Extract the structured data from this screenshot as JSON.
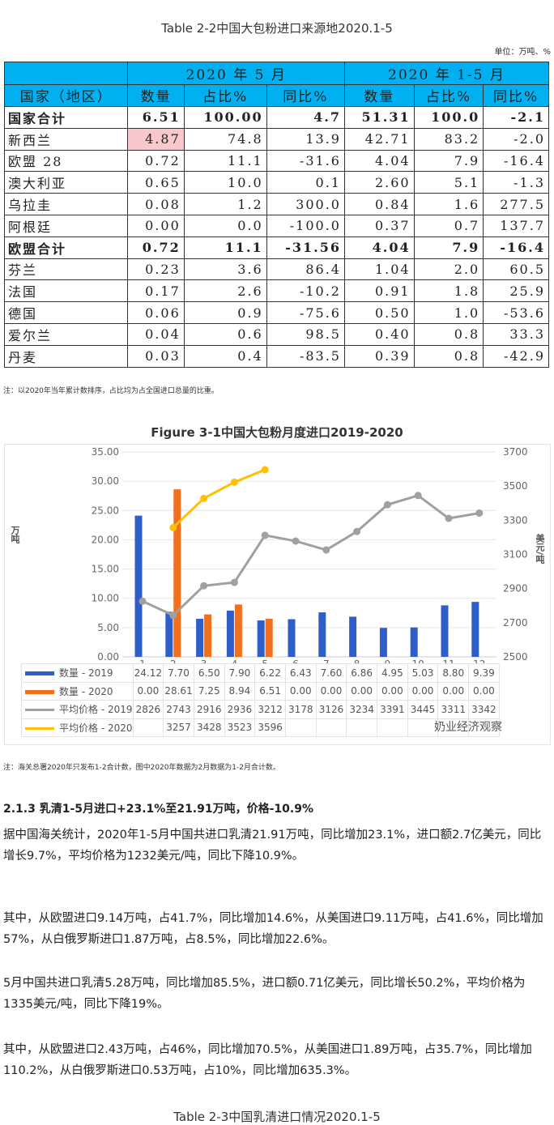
{
  "table": {
    "title": "Table 2-2中国大包粉进口来源地2020.1-5",
    "unit": "单位：万吨、%",
    "group_headers": [
      "2020 年 5 月",
      "2020 年 1-5 月"
    ],
    "headers": [
      "国家（地区）",
      "数量",
      "占比%",
      "同比%",
      "数量",
      "占比%",
      "同比%"
    ],
    "rows": [
      {
        "c": [
          "国家合计",
          "6.51",
          "100.00",
          "4.7",
          "51.31",
          "100.0",
          "-2.1"
        ],
        "bold": true
      },
      {
        "c": [
          "新西兰",
          "4.87",
          "74.8",
          "13.9",
          "42.71",
          "83.2",
          "-2.0"
        ],
        "hl": true
      },
      {
        "c": [
          "欧盟 28",
          "0.72",
          "11.1",
          "-31.6",
          "4.04",
          "7.9",
          "-16.4"
        ]
      },
      {
        "c": [
          "澳大利亚",
          "0.65",
          "10.0",
          "0.1",
          "2.60",
          "5.1",
          "-1.3"
        ]
      },
      {
        "c": [
          "乌拉圭",
          "0.08",
          "1.2",
          "300.0",
          "0.84",
          "1.6",
          "277.5"
        ]
      },
      {
        "c": [
          "阿根廷",
          "0.00",
          "0.0",
          "-100.0",
          "0.37",
          "0.7",
          "137.7"
        ]
      },
      {
        "c": [
          "欧盟合计",
          "0.72",
          "11.1",
          "-31.56",
          "4.04",
          "7.9",
          "-16.4"
        ],
        "bold": true
      },
      {
        "c": [
          "芬兰",
          "0.23",
          "3.6",
          "86.4",
          "1.04",
          "2.0",
          "60.5"
        ]
      },
      {
        "c": [
          "法国",
          "0.17",
          "2.6",
          "-10.2",
          "0.91",
          "1.8",
          "25.9"
        ]
      },
      {
        "c": [
          "德国",
          "0.06",
          "0.9",
          "-75.6",
          "0.50",
          "1.0",
          "-53.6"
        ]
      },
      {
        "c": [
          "爱尔兰",
          "0.04",
          "0.6",
          "98.5",
          "0.40",
          "0.8",
          "33.3"
        ]
      },
      {
        "c": [
          "丹麦",
          "0.03",
          "0.4",
          "-83.5",
          "0.39",
          "0.8",
          "-42.9"
        ]
      }
    ],
    "note": "注：以2020年当年累计数排序，占比均为占全国进口总量的比重。"
  },
  "chart_data": {
    "type": "bar",
    "title": "Figure 3-1中国大包粉月度进口2019-2020",
    "categories": [
      "1",
      "2",
      "3",
      "4",
      "5",
      "6",
      "7",
      "8",
      "9",
      "10",
      "11",
      "12"
    ],
    "ylabel": "万吨",
    "y2label": "美元/吨",
    "ylim": [
      0,
      35
    ],
    "y2lim": [
      2500,
      3700
    ],
    "yticks": [
      "35.00",
      "30.00",
      "25.00",
      "20.00",
      "15.00",
      "10.00",
      "5.00",
      "0.00"
    ],
    "y2ticks": [
      "3700",
      "3500",
      "3300",
      "3100",
      "2900",
      "2700",
      "2500"
    ],
    "series": [
      {
        "name": "数量 - 2019",
        "type": "bar",
        "axis": "left",
        "color": "#2e5fc9",
        "values": [
          24.12,
          7.7,
          6.5,
          7.9,
          6.22,
          6.43,
          7.6,
          6.86,
          4.95,
          5.03,
          8.8,
          9.39
        ],
        "labels": [
          "24.12",
          "7.70",
          "6.50",
          "7.90",
          "6.22",
          "6.43",
          "7.60",
          "6.86",
          "4.95",
          "5.03",
          "8.80",
          "9.39"
        ]
      },
      {
        "name": "数量 - 2020",
        "type": "bar",
        "axis": "left",
        "color": "#f07020",
        "values": [
          0,
          28.61,
          7.25,
          8.94,
          6.51,
          0,
          0,
          0,
          0,
          0,
          0,
          0
        ],
        "labels": [
          "0.00",
          "28.61",
          "7.25",
          "8.94",
          "6.51",
          "0.00",
          "0.00",
          "0.00",
          "0.00",
          "0.00",
          "0.00",
          "0.00"
        ]
      },
      {
        "name": "平均价格 - 2019",
        "type": "line",
        "axis": "right",
        "color": "#a0a0a0",
        "values": [
          2826,
          2743,
          2916,
          2936,
          3212,
          3178,
          3126,
          3234,
          3391,
          3445,
          3311,
          3342
        ],
        "labels": [
          "2826",
          "2743",
          "2916",
          "2936",
          "3212",
          "3178",
          "3126",
          "3234",
          "3391",
          "3445",
          "3311",
          "3342"
        ]
      },
      {
        "name": "平均价格 - 2020",
        "type": "line",
        "axis": "right",
        "color": "#ffc000",
        "values": [
          null,
          3257,
          3428,
          3523,
          3596,
          null,
          null,
          null,
          null,
          null,
          null,
          null
        ],
        "labels": [
          "",
          "3257",
          "3428",
          "3523",
          "3596",
          "",
          "",
          "",
          "",
          "",
          "",
          ""
        ]
      }
    ]
  },
  "watermark": "奶业经济观察",
  "chart_note": "注：海关总署2020年只发布1-2合计数，图中2020年数据为2月数据为1-2月合计数。",
  "section": {
    "heading": "2.1.3  乳清1-5月进口+23.1%至21.91万吨，价格-10.9%",
    "paragraphs": [
      "据中国海关统计，2020年1-5月中国共进口乳清21.91万吨，同比增加23.1%，进口额2.7亿美元，同比增长9.7%，平均价格为1232美元/吨，同比下降10.9%。",
      "其中，从欧盟进口9.14万吨，占41.7%，同比增加14.6%，从美国进口9.11万吨，占41.6%，同比增加57%，从白俄罗斯进口1.87万吨，占8.5%，同比增加22.6%。",
      "5月中国共进口乳清5.28万吨，同比增加85.5%，进口额0.71亿美元，同比增长50.2%，平均价格为1335美元/吨，同比下降19%。",
      "其中，从欧盟进口2.43万吨，占46%，同比增加70.5%，从美国进口1.89万吨，占35.7%，同比增加110.2%，从白俄罗斯进口0.53万吨，占10%，同比增加635.3%。"
    ],
    "next_title": "Table 2-3中国乳清进口情况2020.1-5"
  }
}
